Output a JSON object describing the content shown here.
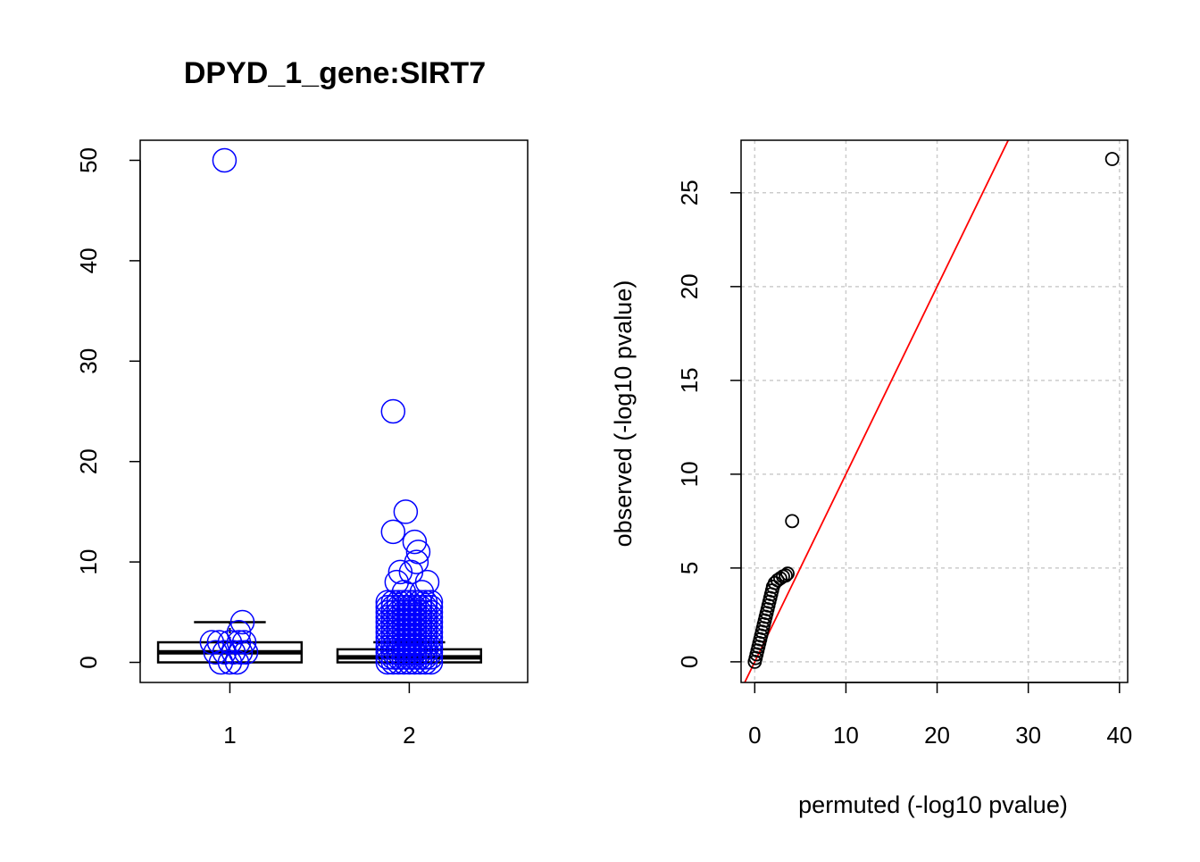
{
  "chart_data": [
    {
      "type": "box",
      "title": "DPYD_1_gene:SIRT7",
      "xlabel": "",
      "ylabel": "",
      "categories": [
        "1",
        "2"
      ],
      "xlim": [
        0.5,
        2.66
      ],
      "ylim": [
        -2,
        52
      ],
      "yticks": [
        0,
        10,
        20,
        30,
        40,
        50
      ],
      "boxes": [
        {
          "category": "1",
          "min": 0,
          "q1": 0,
          "median": 1,
          "q3": 2,
          "max": 4
        },
        {
          "category": "2",
          "min": 0,
          "q1": 0,
          "median": 0.5,
          "q3": 1.3,
          "max": 2
        }
      ],
      "jitter_points": [
        {
          "x": 0.97,
          "y": 50
        },
        {
          "x": 1.07,
          "y": 4
        },
        {
          "x": 1.05,
          "y": 3
        },
        {
          "x": 0.9,
          "y": 2
        },
        {
          "x": 0.94,
          "y": 2
        },
        {
          "x": 1.0,
          "y": 2
        },
        {
          "x": 1.05,
          "y": 2
        },
        {
          "x": 1.08,
          "y": 2
        },
        {
          "x": 0.92,
          "y": 1
        },
        {
          "x": 0.97,
          "y": 1
        },
        {
          "x": 1.02,
          "y": 1
        },
        {
          "x": 1.06,
          "y": 1
        },
        {
          "x": 1.09,
          "y": 1
        },
        {
          "x": 0.95,
          "y": 0
        },
        {
          "x": 1.0,
          "y": 0
        },
        {
          "x": 1.04,
          "y": 0
        },
        {
          "x": 1.91,
          "y": 25
        },
        {
          "x": 1.98,
          "y": 15
        },
        {
          "x": 1.91,
          "y": 13
        },
        {
          "x": 2.03,
          "y": 12
        },
        {
          "x": 2.05,
          "y": 11
        },
        {
          "x": 2.04,
          "y": 10
        },
        {
          "x": 1.95,
          "y": 9
        },
        {
          "x": 2.01,
          "y": 9
        },
        {
          "x": 2.1,
          "y": 8
        },
        {
          "x": 1.93,
          "y": 8
        },
        {
          "x": 2.07,
          "y": 7
        },
        {
          "x": 1.97,
          "y": 7
        }
      ],
      "dense_band": {
        "x_from": 1.88,
        "x_to": 2.12,
        "y_from": 0,
        "y_to": 6
      },
      "point_color": "#0000ff"
    },
    {
      "type": "scatter",
      "title": "",
      "xlabel": "permuted (-log10 pvalue)",
      "ylabel": "observed (-log10 pvalue)",
      "xlim": [
        -1.5,
        40.9
      ],
      "ylim": [
        -1.1,
        27.8
      ],
      "xticks": [
        0,
        10,
        20,
        30,
        40
      ],
      "yticks": [
        0,
        5,
        10,
        15,
        20,
        25
      ],
      "grid": true,
      "reference_line": {
        "slope": 1,
        "intercept": 0,
        "color": "#ff0000"
      },
      "points": [
        {
          "x": 0.0,
          "y": 0.0
        },
        {
          "x": 0.1,
          "y": 0.2
        },
        {
          "x": 0.2,
          "y": 0.4
        },
        {
          "x": 0.3,
          "y": 0.6
        },
        {
          "x": 0.4,
          "y": 0.8
        },
        {
          "x": 0.5,
          "y": 1.0
        },
        {
          "x": 0.6,
          "y": 1.2
        },
        {
          "x": 0.7,
          "y": 1.4
        },
        {
          "x": 0.8,
          "y": 1.6
        },
        {
          "x": 0.9,
          "y": 1.8
        },
        {
          "x": 1.0,
          "y": 2.0
        },
        {
          "x": 1.1,
          "y": 2.2
        },
        {
          "x": 1.2,
          "y": 2.4
        },
        {
          "x": 1.3,
          "y": 2.6
        },
        {
          "x": 1.4,
          "y": 2.8
        },
        {
          "x": 1.5,
          "y": 3.0
        },
        {
          "x": 1.6,
          "y": 3.2
        },
        {
          "x": 1.7,
          "y": 3.4
        },
        {
          "x": 1.8,
          "y": 3.6
        },
        {
          "x": 1.9,
          "y": 3.8
        },
        {
          "x": 2.0,
          "y": 4.0
        },
        {
          "x": 2.2,
          "y": 4.2
        },
        {
          "x": 2.5,
          "y": 4.35
        },
        {
          "x": 2.8,
          "y": 4.45
        },
        {
          "x": 3.1,
          "y": 4.55
        },
        {
          "x": 3.4,
          "y": 4.6
        },
        {
          "x": 3.6,
          "y": 4.7
        },
        {
          "x": 4.1,
          "y": 7.5
        },
        {
          "x": 39.2,
          "y": 26.8
        }
      ],
      "point_color": "#000000"
    }
  ]
}
